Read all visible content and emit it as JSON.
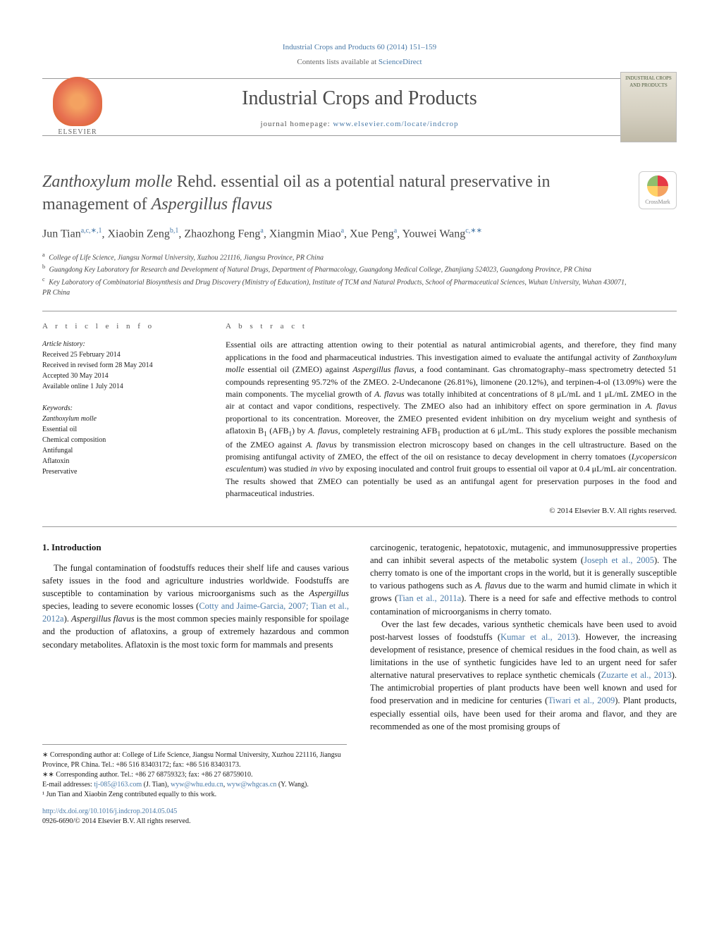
{
  "header": {
    "citation": "Industrial Crops and Products 60 (2014) 151–159",
    "contents_prefix": "Contents lists available at ",
    "contents_link": "ScienceDirect",
    "journal_name": "Industrial Crops and Products",
    "homepage_prefix": "journal homepage: ",
    "homepage_url": "www.elsevier.com/locate/indcrop",
    "publisher": "ELSEVIER",
    "cover_text": "INDUSTRIAL CROPS AND PRODUCTS"
  },
  "crossmark": "CrossMark",
  "title": {
    "line1_italic": "Zanthoxylum molle",
    "line1_rest": " Rehd. essential oil as a potential natural preservative in management of ",
    "line1_italic2": "Aspergillus flavus"
  },
  "authors_html": "Jun Tian<sup>a,c,∗,1</sup>, Xiaobin Zeng<sup>b,1</sup>, Zhaozhong Feng<sup>a</sup>, Xiangmin Miao<sup>a</sup>, Xue Peng<sup>a</sup>, Youwei Wang<sup>c,∗∗</sup>",
  "affiliations": [
    {
      "sup": "a",
      "text": "College of Life Science, Jiangsu Normal University, Xuzhou 221116, Jiangsu Province, PR China"
    },
    {
      "sup": "b",
      "text": "Guangdong Key Laboratory for Research and Development of Natural Drugs, Department of Pharmacology, Guangdong Medical College, Zhanjiang 524023, Guangdong Province, PR China"
    },
    {
      "sup": "c",
      "text": "Key Laboratory of Combinatorial Biosynthesis and Drug Discovery (Ministry of Education), Institute of TCM and Natural Products, School of Pharmaceutical Sciences, Wuhan University, Wuhan 430071, PR China"
    }
  ],
  "article_info": {
    "label": "A R T I C L E   I N F O",
    "history_label": "Article history:",
    "history": [
      "Received 25 February 2014",
      "Received in revised form 28 May 2014",
      "Accepted 30 May 2014",
      "Available online 1 July 2014"
    ],
    "keywords_label": "Keywords:",
    "keywords": [
      {
        "text": "Zanthoxylum molle",
        "italic": true
      },
      {
        "text": "Essential oil",
        "italic": false
      },
      {
        "text": "Chemical composition",
        "italic": false
      },
      {
        "text": "Antifungal",
        "italic": false
      },
      {
        "text": "Aflatoxin",
        "italic": false
      },
      {
        "text": "Preservative",
        "italic": false
      }
    ]
  },
  "abstract": {
    "label": "A B S T R A C T",
    "text_parts": [
      {
        "t": "Essential oils are attracting attention owing to their potential as natural antimicrobial agents, and therefore, they find many applications in the food and pharmaceutical industries. This investigation aimed to evaluate the antifungal activity of "
      },
      {
        "t": "Zanthoxylum molle",
        "i": true
      },
      {
        "t": " essential oil (ZMEO) against "
      },
      {
        "t": "Aspergillus flavus",
        "i": true
      },
      {
        "t": ", a food contaminant. Gas chromatography–mass spectrometry detected 51 compounds representing 95.72% of the ZMEO. 2-Undecanone (26.81%), limonene (20.12%), and terpinen-4-ol (13.09%) were the main components. The mycelial growth of "
      },
      {
        "t": "A. flavus",
        "i": true
      },
      {
        "t": " was totally inhibited at concentrations of 8 μL/mL and 1 μL/mL ZMEO in the air at contact and vapor conditions, respectively. The ZMEO also had an inhibitory effect on spore germination in "
      },
      {
        "t": "A. flavus",
        "i": true
      },
      {
        "t": " proportional to its concentration. Moreover, the ZMEO presented evident inhibition on dry mycelium weight and synthesis of aflatoxin B"
      },
      {
        "t": "1",
        "sub": true
      },
      {
        "t": " (AFB"
      },
      {
        "t": "1",
        "sub": true
      },
      {
        "t": ") by "
      },
      {
        "t": "A. flavus",
        "i": true
      },
      {
        "t": ", completely restraining AFB"
      },
      {
        "t": "1",
        "sub": true
      },
      {
        "t": " production at 6 μL/mL. This study explores the possible mechanism of the ZMEO against "
      },
      {
        "t": "A. flavus",
        "i": true
      },
      {
        "t": " by transmission electron microscopy based on changes in the cell ultrastructure. Based on the promising antifungal activity of ZMEO, the effect of the oil on resistance to decay development in cherry tomatoes ("
      },
      {
        "t": "Lycopersicon esculentum",
        "i": true
      },
      {
        "t": ") was studied "
      },
      {
        "t": "in vivo",
        "i": true
      },
      {
        "t": " by exposing inoculated and control fruit groups to essential oil vapor at 0.4 μL/mL air concentration. The results showed that ZMEO can potentially be used as an antifungal agent for preservation purposes in the food and pharmaceutical industries."
      }
    ],
    "copyright": "© 2014 Elsevier B.V. All rights reserved."
  },
  "intro": {
    "heading": "1.  Introduction",
    "col1_parts": [
      {
        "t": "The fungal contamination of foodstuffs reduces their shelf life and causes various safety issues in the food and agriculture industries worldwide. Foodstuffs are susceptible to contamination by various microorganisms such as the "
      },
      {
        "t": "Aspergillus",
        "i": true
      },
      {
        "t": " species, leading to severe economic losses ("
      },
      {
        "t": "Cotty and Jaime-Garcia, 2007; Tian et al., 2012a",
        "ref": true
      },
      {
        "t": "). "
      },
      {
        "t": "Aspergillus flavus",
        "i": true
      },
      {
        "t": " is the most common species mainly responsible for spoilage and the production of aflatoxins, a group of extremely hazardous and common secondary metabolites. Aflatoxin is the most toxic form for mammals and presents"
      }
    ],
    "col2_p1_parts": [
      {
        "t": "carcinogenic, teratogenic, hepatotoxic, mutagenic, and immunosuppressive properties and can inhibit several aspects of the metabolic system ("
      },
      {
        "t": "Joseph et al., 2005",
        "ref": true
      },
      {
        "t": "). The cherry tomato is one of the important crops in the world, but it is generally susceptible to various pathogens such as "
      },
      {
        "t": "A. flavus",
        "i": true
      },
      {
        "t": " due to the warm and humid climate in which it grows ("
      },
      {
        "t": "Tian et al., 2011a",
        "ref": true
      },
      {
        "t": "). There is a need for safe and effective methods to control contamination of microorganisms in cherry tomato."
      }
    ],
    "col2_p2_parts": [
      {
        "t": "Over the last few decades, various synthetic chemicals have been used to avoid post-harvest losses of foodstuffs ("
      },
      {
        "t": "Kumar et al., 2013",
        "ref": true
      },
      {
        "t": "). However, the increasing development of resistance, presence of chemical residues in the food chain, as well as limitations in the use of synthetic fungicides have led to an urgent need for safer alternative natural preservatives to replace synthetic chemicals ("
      },
      {
        "t": "Zuzarte et al., 2013",
        "ref": true
      },
      {
        "t": "). The antimicrobial properties of plant products have been well known and used for food preservation and in medicine for centuries ("
      },
      {
        "t": "Tiwari et al., 2009",
        "ref": true
      },
      {
        "t": "). Plant products, especially essential oils, have been used for their aroma and flavor, and they are recommended as one of the most promising groups of"
      }
    ]
  },
  "footnotes": {
    "f1": "∗ Corresponding author at: College of Life Science, Jiangsu Normal University, Xuzhou 221116, Jiangsu Province, PR China. Tel.: +86 516 83403172; fax: +86 516 83403173.",
    "f2": "∗∗ Corresponding author. Tel.: +86 27 68759323; fax: +86 27 68759010.",
    "f3_prefix": "E-mail addresses: ",
    "emails": [
      {
        "addr": "tj-085@163.com",
        "who": " (J. Tian), "
      },
      {
        "addr": "wyw@whu.edu.cn",
        "who": ", "
      },
      {
        "addr": "wyw@whgcas.cn",
        "who": " (Y. Wang)."
      }
    ],
    "f4": "¹ Jun Tian and Xiaobin Zeng contributed equally to this work."
  },
  "doi": {
    "url": "http://dx.doi.org/10.1016/j.indcrop.2014.05.045",
    "issn": "0926-6690/© 2014 Elsevier B.V. All rights reserved."
  },
  "colors": {
    "link": "#4a7aa8",
    "text": "#1a1a1a",
    "muted": "#666666",
    "rule": "#999999"
  }
}
